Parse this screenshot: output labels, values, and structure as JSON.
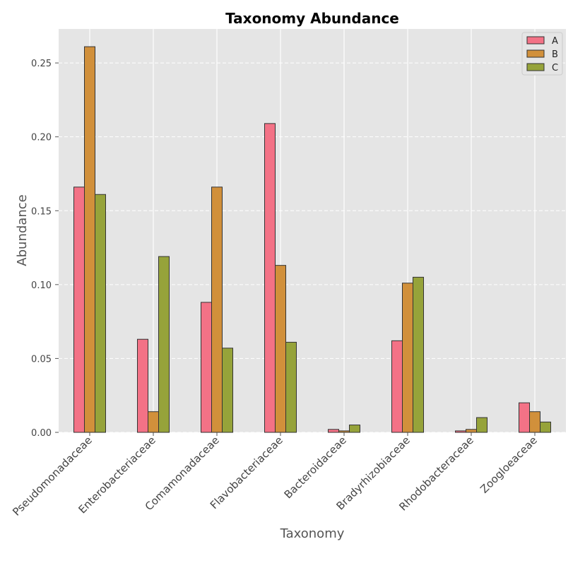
{
  "chart_data": {
    "type": "bar",
    "title": "Taxonomy Abundance",
    "xlabel": "Taxonomy",
    "ylabel": "Abundance",
    "ylim": [
      0,
      0.273
    ],
    "yticks": [
      0.0,
      0.05,
      0.1,
      0.15,
      0.2,
      0.25
    ],
    "ytick_labels": [
      "0.00",
      "0.05",
      "0.10",
      "0.15",
      "0.20",
      "0.25"
    ],
    "categories": [
      "Pseudomonadaceae",
      "Enterobacteriaceae",
      "Comamonadaceae",
      "Flavobacteriaceae",
      "Bacteroidaceae",
      "Bradyrhizobiaceae",
      "Rhodobacteraceae",
      "Zoogloeaceae"
    ],
    "series": [
      {
        "name": "A",
        "color": "#f37286",
        "values": [
          0.166,
          0.063,
          0.088,
          0.209,
          0.002,
          0.062,
          0.001,
          0.02
        ]
      },
      {
        "name": "B",
        "color": "#d1903b",
        "values": [
          0.261,
          0.014,
          0.166,
          0.113,
          0.001,
          0.101,
          0.002,
          0.014
        ]
      },
      {
        "name": "C",
        "color": "#96a33a",
        "values": [
          0.161,
          0.119,
          0.057,
          0.061,
          0.005,
          0.105,
          0.01,
          0.007
        ]
      }
    ],
    "legend_position": "top-right",
    "grid": true,
    "background": "#e5e5e5",
    "bar_edge_color": "#333333"
  }
}
